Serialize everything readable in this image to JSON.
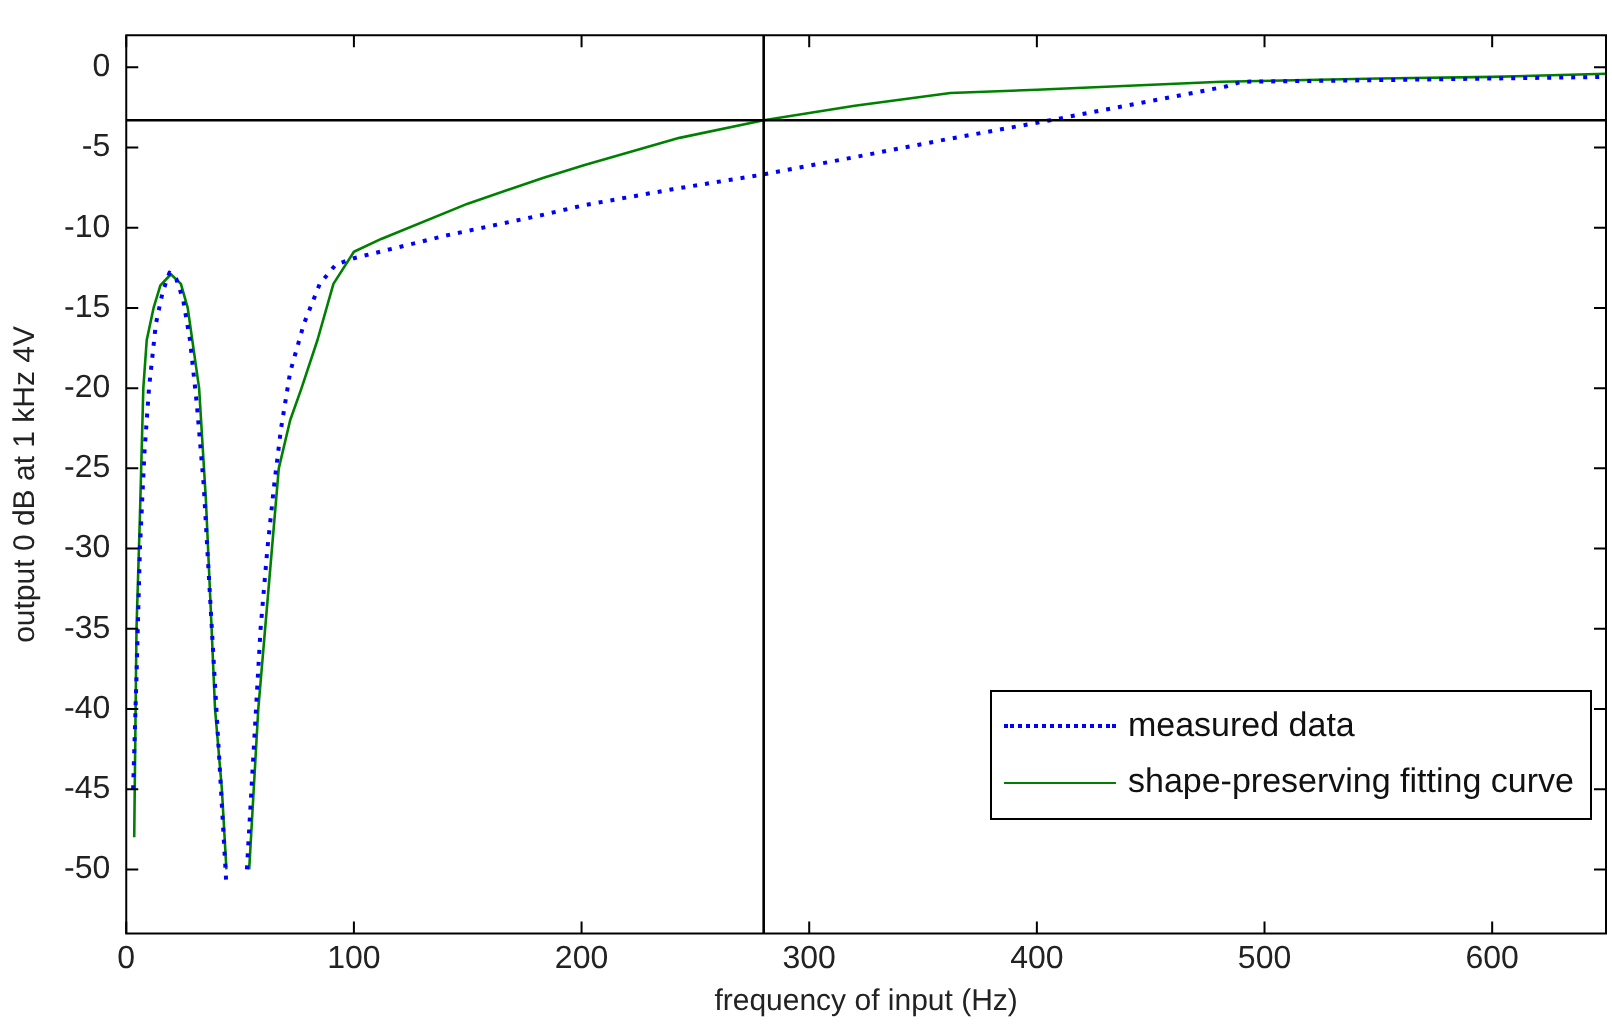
{
  "chart_data": {
    "type": "line",
    "xlabel": "frequency of input (Hz)",
    "ylabel": "output 0 dB at 1 kHz 4V",
    "xlim": [
      0,
      650
    ],
    "xticks": [
      0,
      100,
      200,
      300,
      400,
      500,
      600
    ],
    "ylim": [
      -54,
      2
    ],
    "yticks": [
      -50,
      -45,
      -40,
      -35,
      -30,
      -25,
      -20,
      -15,
      -10,
      -5,
      0
    ],
    "grid": false,
    "legend": "bottom right",
    "ref_lines": [
      {
        "axis": "x",
        "value": 280,
        "color": "#000000"
      },
      {
        "axis": "y",
        "value": -3.3,
        "color": "#000000"
      }
    ],
    "series": [
      {
        "name": "measured data",
        "color": "#0000ff",
        "line_style": "dotted",
        "x": [
          3,
          4.5,
          6,
          8,
          10,
          13,
          16,
          19,
          22,
          25,
          28,
          31,
          34,
          36,
          38,
          40,
          42,
          44,
          48,
          53,
          55,
          57,
          59,
          62,
          65,
          68,
          72,
          78,
          85,
          92,
          100,
          140,
          183,
          201,
          240,
          279,
          320,
          360,
          406,
          450,
          483,
          490,
          550,
          600,
          650
        ],
        "values": [
          -45,
          -38,
          -30,
          -24,
          -20,
          -16,
          -14,
          -12.8,
          -13.2,
          -14.5,
          -17,
          -21,
          -26,
          -31,
          -36,
          -41,
          -46,
          -51,
          null,
          -50,
          -45,
          -40,
          -35,
          -30,
          -26,
          -22.5,
          -19,
          -16,
          -13.5,
          -12.3,
          -11.9,
          -10.5,
          -9.2,
          -8.6,
          -7.6,
          -6.7,
          -5.6,
          -4.5,
          -3.3,
          -2.1,
          -1.2,
          -0.9,
          -0.8,
          -0.7,
          -0.6
        ]
      },
      {
        "name": "shape-preserving fitting curve",
        "color": "#008000",
        "line_style": "solid",
        "x": [
          3.5,
          4.5,
          6,
          7.5,
          9,
          12,
          15,
          19.6,
          24,
          27,
          32,
          35,
          37.5,
          39,
          42,
          44,
          48,
          54,
          56,
          58,
          61,
          64,
          67,
          72,
          77,
          84,
          91,
          100,
          112,
          150,
          183,
          201,
          243,
          280,
          320,
          362,
          400,
          481,
          550,
          600,
          650
        ],
        "values": [
          -48,
          -35,
          -28,
          -20,
          -17,
          -15,
          -13.6,
          -12.9,
          -13.5,
          -15,
          -20,
          -27,
          -35,
          -40,
          -45,
          -50,
          null,
          -50,
          -45,
          -40,
          -35,
          -30,
          -25,
          -22,
          -20,
          -17,
          -13.5,
          -11.5,
          -10.7,
          -8.5,
          -6.9,
          -6.1,
          -4.4,
          -3.3,
          -2.4,
          -1.6,
          -1.4,
          -0.9,
          -0.7,
          -0.6,
          -0.4
        ]
      }
    ]
  }
}
